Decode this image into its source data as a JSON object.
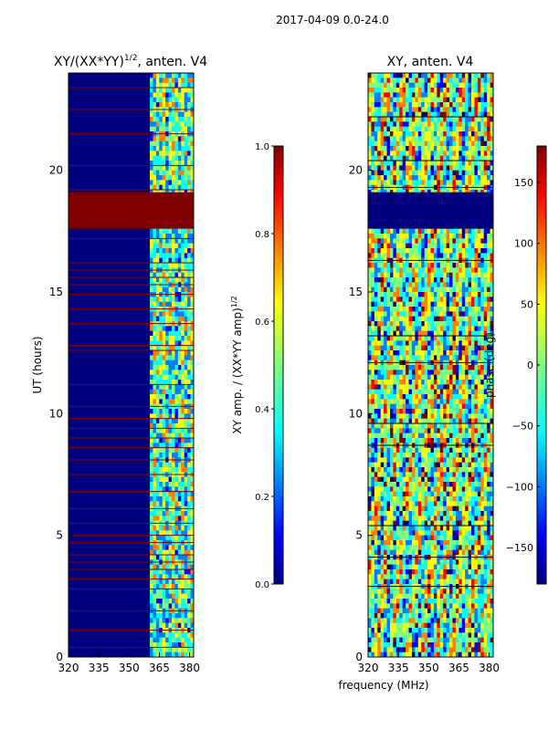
{
  "page_title": "2017-04-09 0.0-24.0",
  "colors": {
    "background_blue": "#00007f",
    "saturated_red": "#800000",
    "jet": [
      "#00007f",
      "#0000ff",
      "#007fff",
      "#00ffff",
      "#7fff7f",
      "#ffff00",
      "#ff7f00",
      "#ff0000",
      "#7f0000"
    ]
  },
  "chart_data": [
    {
      "type": "heatmap",
      "title": "XY/(XX*YY)",
      "title_superscript": "1/2",
      "title_suffix": ", anten. V4",
      "xlabel": "",
      "ylabel": "UT (hours)",
      "xlim": [
        320,
        382
      ],
      "ylim": [
        0,
        24
      ],
      "xticks": [
        320,
        335,
        350,
        365,
        380
      ],
      "yticks": [
        0,
        5,
        10,
        15,
        20
      ],
      "active_band_mhz": [
        360,
        382
      ],
      "flagged_blocks_hours": [
        [
          17.6,
          19.1
        ]
      ],
      "red_lines_hours": [
        0.4,
        1.1,
        1.9,
        2.8,
        3.2,
        3.6,
        3.9,
        4.2,
        4.7,
        5.0,
        5.5,
        6.1,
        6.8,
        7.5,
        8.1,
        8.6,
        9.0,
        9.4,
        9.8,
        10.3,
        11.2,
        12.6,
        12.8,
        13.7,
        14.3,
        14.9,
        15.3,
        15.6,
        15.9,
        16.2,
        17.2,
        19.2,
        20.2,
        21.5,
        22.5,
        23.4
      ],
      "colorbar": {
        "label": "XY amp. / (XX*YY amp)",
        "label_superscript": "1/2",
        "range": [
          0.0,
          1.0
        ],
        "ticks": [
          "0.0",
          "0.2",
          "0.4",
          "0.6",
          "0.8",
          "1.0"
        ]
      }
    },
    {
      "type": "heatmap",
      "title": "XY, anten. V4",
      "xlabel": "frequency (MHz)",
      "ylabel": "",
      "xlim": [
        320,
        382
      ],
      "ylim": [
        0,
        24
      ],
      "xticks": [
        320,
        335,
        350,
        365,
        380
      ],
      "yticks": [
        0,
        5,
        10,
        15,
        20
      ],
      "flagged_blocks_hours": [
        [
          17.6,
          19.1
        ]
      ],
      "colorbar": {
        "label": "phase (deg)",
        "range": [
          -180,
          180
        ],
        "ticks": [
          "−150",
          "−100",
          "−50",
          "0",
          "50",
          "100",
          "150"
        ]
      }
    }
  ]
}
